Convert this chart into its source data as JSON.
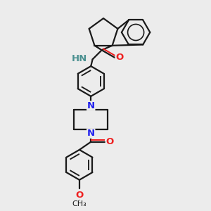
{
  "bg": "#ececec",
  "bc": "#1a1a1a",
  "nc": "#2020ee",
  "oc": "#ee2020",
  "hc": "#4a9090",
  "lw": 1.6,
  "fs": 9.5,
  "fs_small": 8.0,
  "xlim": [
    0,
    10
  ],
  "ylim": [
    0,
    10
  ]
}
